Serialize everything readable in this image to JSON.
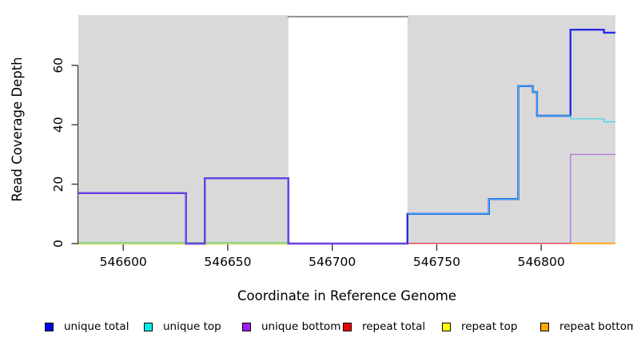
{
  "chart_data": {
    "type": "line",
    "subtype": "step-coverage-plot",
    "title": "",
    "xlabel": "Coordinate in Reference Genome",
    "ylabel": "Read Coverage Depth",
    "x_range": [
      546578.5,
      546835.5
    ],
    "y_range": [
      0,
      77
    ],
    "x_ticks": [
      546600,
      546650,
      546700,
      546750,
      546800
    ],
    "y_ticks": [
      0,
      20,
      40,
      60
    ],
    "grid": false,
    "plot_background": "#d9d9d9",
    "axis_color": "#3a3a3a",
    "masked_region": {
      "start": 546679,
      "end": 546736,
      "fill": "#ffffff",
      "border_top_color": "#8a8a8a",
      "meaning": "repeat-masked interval"
    },
    "series": [
      {
        "name": "unique total",
        "color": "#0000EE",
        "step_points": [
          [
            546578.5,
            17
          ],
          [
            546630,
            0
          ],
          [
            546639,
            22
          ],
          [
            546679,
            0
          ],
          [
            546736,
            10
          ],
          [
            546775,
            15
          ],
          [
            546789,
            53
          ],
          [
            546796,
            51
          ],
          [
            546798,
            43
          ],
          [
            546814,
            72
          ],
          [
            546830,
            71
          ]
        ],
        "end_x": 546835.5
      },
      {
        "name": "unique top",
        "color": "#00EEEE",
        "step_points": [
          [
            546578.5,
            0
          ],
          [
            546736,
            10
          ],
          [
            546775,
            15
          ],
          [
            546789,
            53
          ],
          [
            546796,
            51
          ],
          [
            546798,
            43
          ],
          [
            546814,
            42
          ],
          [
            546830,
            41
          ]
        ],
        "end_x": 546835.5
      },
      {
        "name": "unique bottom",
        "color": "#A020F0",
        "step_points": [
          [
            546578.5,
            17
          ],
          [
            546630,
            0
          ],
          [
            546639,
            22
          ],
          [
            546679,
            0
          ],
          [
            546814,
            30
          ]
        ],
        "end_x": 546835.5
      },
      {
        "name": "repeat total",
        "color": "#EE0000",
        "step_points": [
          [
            546578.5,
            0
          ]
        ],
        "end_x": 546835.5
      },
      {
        "name": "repeat top",
        "color": "#FFFF00",
        "step_points": [
          [
            546578.5,
            0
          ]
        ],
        "end_x": 546835.5
      },
      {
        "name": "repeat bottom",
        "color": "#FFA500",
        "step_points": [
          [
            546578.5,
            0
          ]
        ],
        "end_x": 546835.5
      }
    ],
    "render_polylines": [
      {
        "name": "repeat-top-zero-line",
        "color": "#e6d96a",
        "width": 1.3,
        "y_offset": 0.8,
        "points": [
          [
            546578.5,
            0
          ],
          [
            546680,
            0
          ]
        ]
      },
      {
        "name": "unique-top-zero-blend-line",
        "color": "#71d171",
        "width": 1.4,
        "y_offset": -1.0,
        "points": [
          [
            546578.5,
            0
          ],
          [
            546680,
            0
          ]
        ]
      },
      {
        "name": "repeat-total-zero-line",
        "color": "#e8455a",
        "width": 1.5,
        "y_offset": -0.2,
        "points": [
          [
            546736,
            0
          ],
          [
            546814,
            0
          ]
        ]
      },
      {
        "name": "repeat-bottom-zero-line",
        "color": "#ff9f1a",
        "width": 1.8,
        "y_offset": -0.2,
        "points": [
          [
            546814,
            0
          ],
          [
            546835.5,
            0
          ]
        ]
      },
      {
        "name": "unique-total-line",
        "color": "#2a2ae8",
        "width": 2.4,
        "y_offset": 0,
        "points": [
          [
            546578.5,
            17
          ],
          [
            546630,
            17
          ],
          [
            546630,
            0
          ],
          [
            546639,
            0
          ],
          [
            546639,
            22
          ],
          [
            546679,
            22
          ],
          [
            546679,
            0
          ],
          [
            546736,
            0
          ],
          [
            546736,
            10
          ],
          [
            546775,
            10
          ],
          [
            546775,
            15
          ],
          [
            546789,
            15
          ],
          [
            546789,
            53
          ],
          [
            546796,
            53
          ],
          [
            546796,
            51
          ],
          [
            546798,
            51
          ],
          [
            546798,
            43
          ],
          [
            546814,
            43
          ],
          [
            546814,
            72
          ],
          [
            546830,
            72
          ],
          [
            546830,
            71
          ],
          [
            546835.5,
            71
          ]
        ]
      },
      {
        "name": "unique-top-line",
        "color": "#35d8e8",
        "width": 1.2,
        "y_offset": 0,
        "points": [
          [
            546736,
            10
          ],
          [
            546775,
            10
          ],
          [
            546775,
            15
          ],
          [
            546789,
            15
          ],
          [
            546789,
            53
          ],
          [
            546796,
            53
          ],
          [
            546796,
            51
          ],
          [
            546798,
            51
          ],
          [
            546798,
            43
          ],
          [
            546814,
            43
          ],
          [
            546814,
            42
          ],
          [
            546830,
            42
          ],
          [
            546830,
            41
          ],
          [
            546835.5,
            41
          ]
        ]
      },
      {
        "name": "unique-bottom-line-left",
        "color": "#9b4fe0",
        "width": 1.2,
        "y_offset": 0,
        "points": [
          [
            546578.5,
            17
          ],
          [
            546630,
            17
          ],
          [
            546630,
            0
          ],
          [
            546639,
            0
          ],
          [
            546639,
            22
          ],
          [
            546679,
            22
          ],
          [
            546679,
            0
          ],
          [
            546736,
            0
          ]
        ]
      },
      {
        "name": "unique-bottom-line-right",
        "color": "#b87bdf",
        "width": 1.4,
        "y_offset": 0,
        "points": [
          [
            546814,
            0
          ],
          [
            546814,
            30
          ],
          [
            546835.5,
            30
          ]
        ]
      }
    ],
    "legend": {
      "position": "bottom",
      "items": [
        {
          "label": "unique total",
          "color": "#0000EE"
        },
        {
          "label": "unique top",
          "color": "#00EEEE"
        },
        {
          "label": "unique bottom",
          "color": "#A020F0"
        },
        {
          "label": "repeat total",
          "color": "#EE0000"
        },
        {
          "label": "repeat top",
          "color": "#FFFF00"
        },
        {
          "label": "repeat bottom",
          "color": "#FFA500"
        }
      ]
    }
  }
}
